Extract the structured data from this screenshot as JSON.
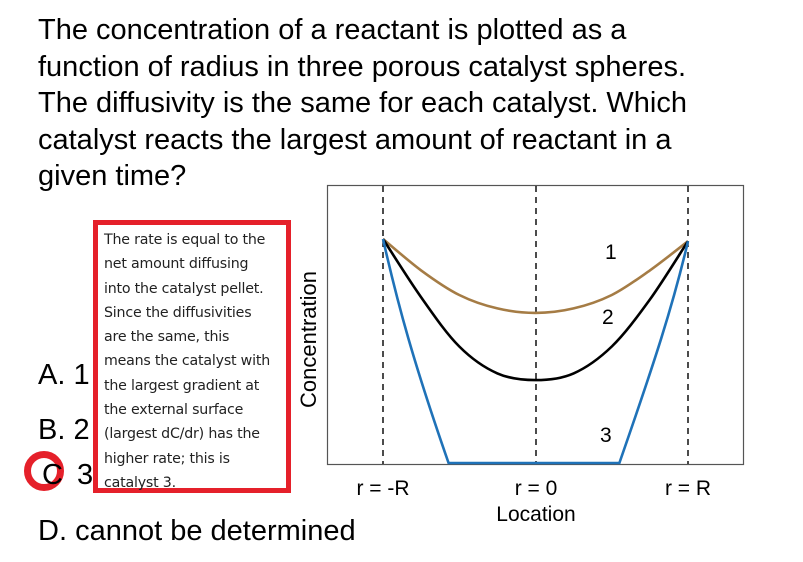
{
  "question": {
    "lines": [
      "The concentration of a reactant is plotted as a",
      "function of radius in three porous catalyst spheres.",
      "The diffusivity is the same for each catalyst. Which",
      "catalyst reacts the largest amount of reactant in a",
      "given time?"
    ]
  },
  "options": [
    {
      "letter": "A.",
      "value": "1"
    },
    {
      "letter": "B.",
      "value": "2"
    },
    {
      "letter": "C",
      "value": "3",
      "selected": true
    },
    {
      "letter": "D.",
      "value": "cannot be determined"
    }
  ],
  "highlight_color": "#e5202a",
  "explanation": {
    "lines": [
      "The rate is equal to the",
      "net amount diffusing",
      "into the catalyst pellet.",
      "Since the diffusivities",
      "are the same, this",
      "means the catalyst with",
      "the largest gradient at",
      "the external surface",
      "(largest dC/dr) has the",
      "higher rate; this is",
      "catalyst 3."
    ]
  },
  "chart_data": {
    "type": "line",
    "title": "",
    "xlabel": "Location",
    "ylabel": "Concentration",
    "x_ticks": [
      "r = -R",
      "r = 0",
      "r = R"
    ],
    "xlim": [
      -1.37,
      1.37
    ],
    "ylim": [
      0,
      1.3
    ],
    "grid": "vertical dashed lines at r = -R, 0, R",
    "legend": "inline curve labels 1, 2, 3",
    "x": [
      -1,
      -0.75,
      -0.5,
      -0.25,
      0,
      0.25,
      0.5,
      0.75,
      1
    ],
    "series": [
      {
        "name": "1",
        "color": "#a57c45",
        "values": [
          1.0,
          0.86,
          0.75,
          0.69,
          0.67,
          0.69,
          0.75,
          0.86,
          0.99
        ]
      },
      {
        "name": "2",
        "color": "#000000",
        "values": [
          1.0,
          0.74,
          0.52,
          0.4,
          0.37,
          0.4,
          0.52,
          0.73,
          0.99
        ]
      },
      {
        "name": "3",
        "color": "#1f72b8",
        "values": [
          1.0,
          0.3,
          0.0,
          0.0,
          0.0,
          0.0,
          0.0,
          0.3,
          0.99
        ]
      }
    ],
    "curve_labels": [
      {
        "text": "1",
        "x": 0.45,
        "y": 0.92
      },
      {
        "text": "2",
        "x": 0.45,
        "y": 0.62
      },
      {
        "text": "3",
        "x": 0.45,
        "y": 0.12
      }
    ]
  }
}
